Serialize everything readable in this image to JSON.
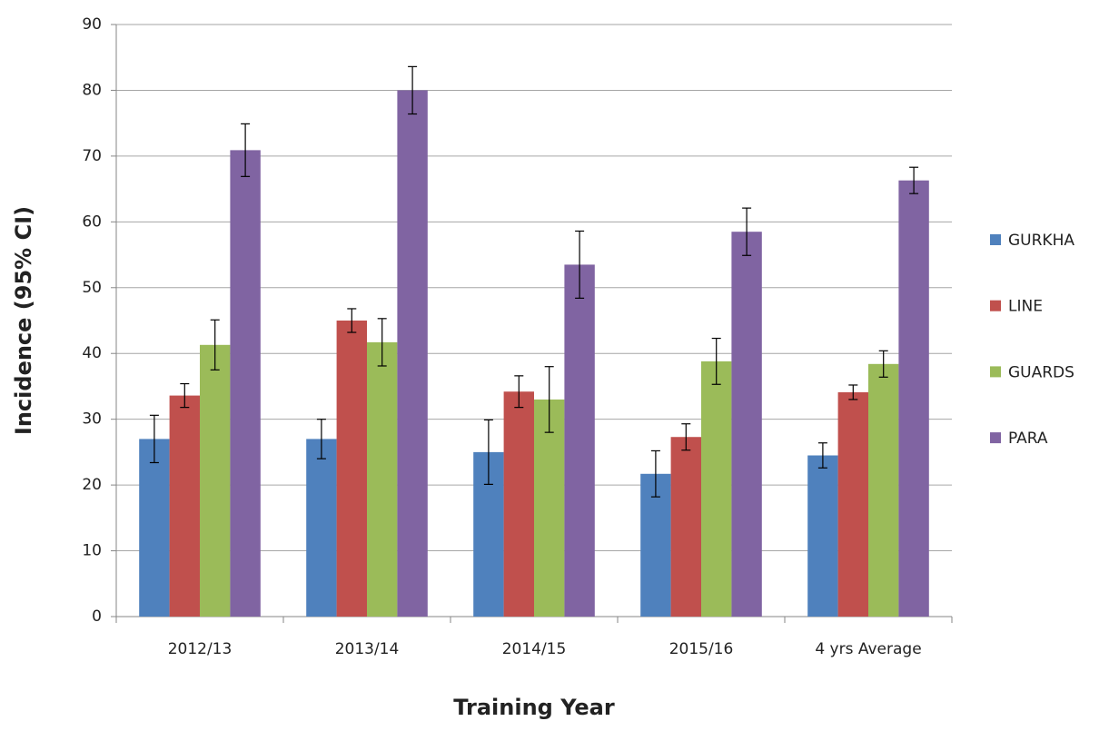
{
  "chart_data": {
    "type": "bar",
    "xlabel": "Training Year",
    "ylabel": "Incidence (95% CI)",
    "categories": [
      "2012/13",
      "2013/14",
      "2014/15",
      "2015/16",
      "4 yrs Average"
    ],
    "series": [
      {
        "name": "GURKHA",
        "color": "#4f81bd",
        "values": [
          27,
          27,
          25,
          21.7,
          24.5
        ],
        "errors": [
          3.6,
          3,
          4.9,
          3.5,
          1.9
        ]
      },
      {
        "name": "LINE",
        "color": "#c0504d",
        "values": [
          33.6,
          45,
          34.2,
          27.3,
          34.1
        ],
        "errors": [
          1.8,
          1.8,
          2.4,
          2,
          1.1
        ]
      },
      {
        "name": "GUARDS",
        "color": "#9bbb59",
        "values": [
          41.3,
          41.7,
          33,
          38.8,
          38.4
        ],
        "errors": [
          3.8,
          3.6,
          5,
          3.5,
          2
        ]
      },
      {
        "name": "PARA",
        "color": "#8064a2",
        "values": [
          70.9,
          80,
          53.5,
          58.5,
          66.3
        ],
        "errors": [
          4,
          3.6,
          5.1,
          3.6,
          2
        ]
      }
    ],
    "ylim": [
      0,
      90
    ],
    "yticks": [
      0,
      10,
      20,
      30,
      40,
      50,
      60,
      70,
      80,
      90
    ],
    "grid": true,
    "legend": "right"
  }
}
